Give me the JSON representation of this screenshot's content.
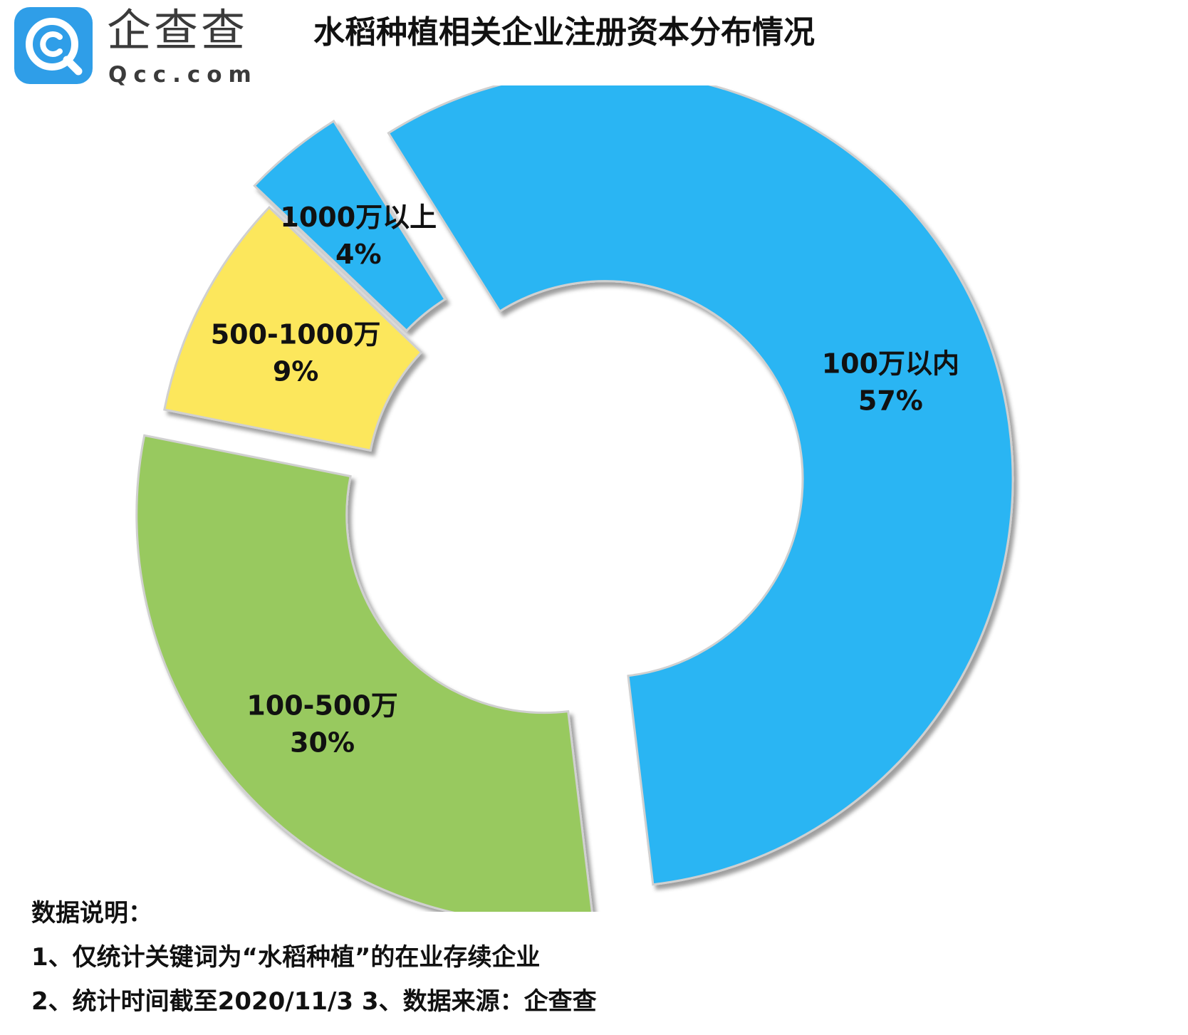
{
  "logo": {
    "cn": "企查查",
    "en": "Qcc.com",
    "brand_color": "#2f9ee8"
  },
  "title": "水稻种植相关企业注册资本分布情况",
  "chart_data": {
    "type": "pie",
    "title": "水稻种植相关企业注册资本分布情况",
    "style": "donut-exploded",
    "slices": [
      {
        "label": "100万以内",
        "value": 57,
        "value_label": "57%",
        "color": "#2cb5f3"
      },
      {
        "label": "100-500万",
        "value": 30,
        "value_label": "30%",
        "color": "#98c95f"
      },
      {
        "label": "500-1000万",
        "value": 9,
        "value_label": "9%",
        "color": "#fce75c"
      },
      {
        "label": "1000万以上",
        "value": 4,
        "value_label": "4%",
        "color": "#2cb5f3"
      }
    ]
  },
  "notes": {
    "heading": "数据说明：",
    "line1": "1、仅统计关键词为“水稻种植”的在业存续企业",
    "line2": "2、统计时间截至2020/11/3   3、数据来源：企查查"
  }
}
